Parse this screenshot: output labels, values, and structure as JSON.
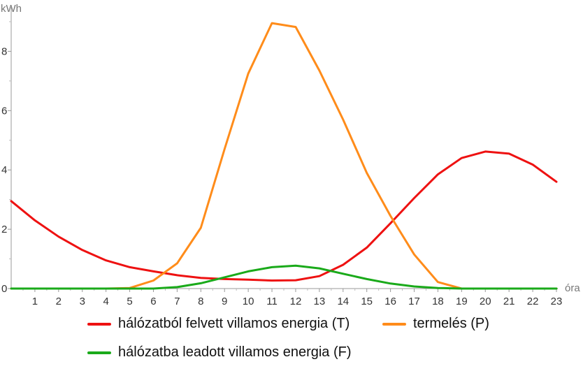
{
  "chart_data": {
    "type": "line",
    "xlabel": "óra",
    "ylabel": "kWh",
    "xlim": [
      0,
      23
    ],
    "ylim": [
      0,
      9.4
    ],
    "x_ticks": [
      1,
      2,
      3,
      4,
      5,
      6,
      7,
      8,
      9,
      10,
      11,
      12,
      13,
      14,
      15,
      16,
      17,
      18,
      19,
      20,
      21,
      22,
      23
    ],
    "y_ticks": [
      0,
      2,
      4,
      6,
      8
    ],
    "x": [
      0,
      1,
      2,
      3,
      4,
      5,
      6,
      7,
      8,
      9,
      10,
      11,
      12,
      13,
      14,
      15,
      16,
      17,
      18,
      19,
      20,
      21,
      22,
      23
    ],
    "series": [
      {
        "name": "hálózatból felvett villamos energia (T)",
        "color": "#ee1111",
        "values": [
          2.95,
          2.3,
          1.75,
          1.3,
          0.95,
          0.72,
          0.58,
          0.45,
          0.36,
          0.32,
          0.3,
          0.27,
          0.28,
          0.42,
          0.8,
          1.38,
          2.2,
          3.05,
          3.85,
          4.4,
          4.62,
          4.55,
          4.18,
          3.6
        ]
      },
      {
        "name": "termelés (P)",
        "color": "#ff8c1a",
        "values": [
          0,
          0,
          0,
          0,
          0,
          0.02,
          0.27,
          0.85,
          2.05,
          4.7,
          7.25,
          8.95,
          8.82,
          7.35,
          5.7,
          3.9,
          2.45,
          1.15,
          0.22,
          0,
          0,
          0,
          0,
          0
        ]
      },
      {
        "name": "hálózatba leadott villamos energia (F)",
        "color": "#1aaa1a",
        "values": [
          0,
          0,
          0,
          0,
          0,
          0,
          0,
          0.05,
          0.18,
          0.38,
          0.58,
          0.72,
          0.77,
          0.68,
          0.5,
          0.32,
          0.17,
          0.07,
          0.02,
          0,
          0,
          0,
          0,
          0
        ]
      }
    ],
    "grid": false,
    "legend_position": "bottom"
  },
  "legend": {
    "t_label": "hálózatból felvett villamos energia (T)",
    "p_label": "termelés (P)",
    "f_label": "hálózatba leadott villamos energia (F)"
  }
}
